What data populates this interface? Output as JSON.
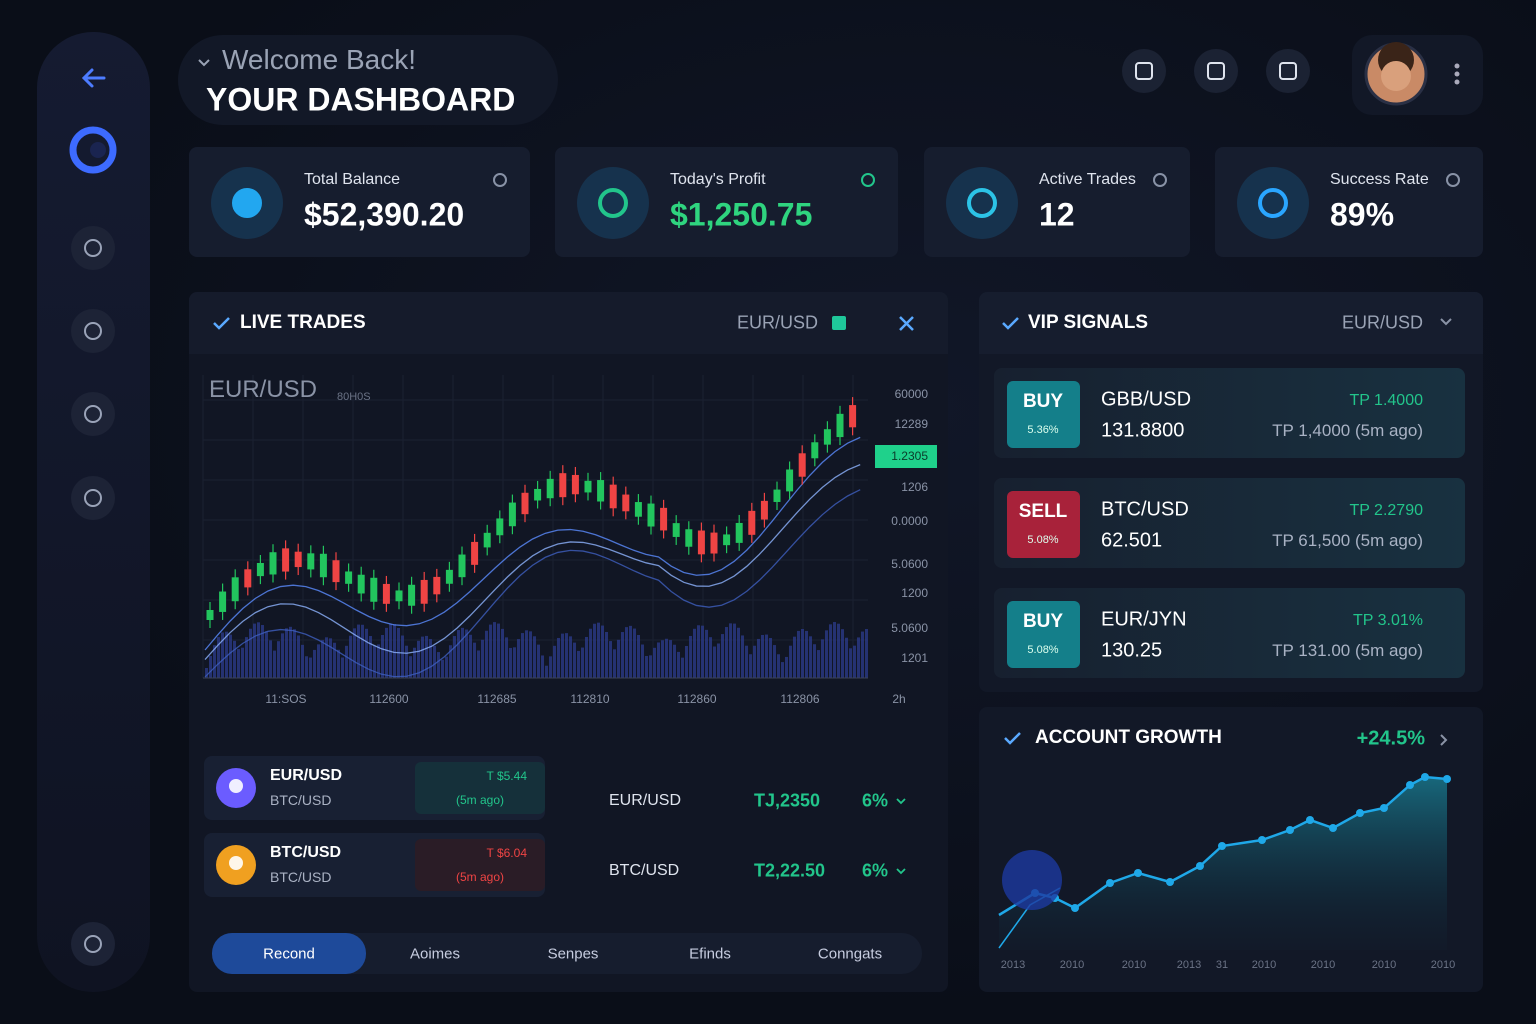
{
  "header": {
    "greeting": "Welcome Back!",
    "title": "YOUR DASHBOARD"
  },
  "stats": [
    {
      "label": "Total Balance",
      "value": "$52,390.20"
    },
    {
      "label": "Today's Profit",
      "value": "$1,250.75"
    },
    {
      "label": "Active Trades",
      "value": "12"
    },
    {
      "label": "Success Rate",
      "value": "89%"
    }
  ],
  "live_trades": {
    "title": "LIVE TRADES",
    "pair": "EUR/USD",
    "chart_label": "EUR/USD",
    "chart_sublabel": "80H0S",
    "price_labels": [
      "60000",
      "12289",
      "1.2305",
      "1206",
      "0.0000",
      "5.0600",
      "1200",
      "5.0600",
      "1201"
    ],
    "time_labels": [
      "11:SOS",
      "112600",
      "112685",
      "112810",
      "112860",
      "112806",
      "2h"
    ],
    "positions": [
      {
        "pair": "EUR/USD",
        "sub": "BTC/USD",
        "tp": "T $5.44",
        "time": "(5m ago)"
      },
      {
        "pair": "BTC/USD",
        "sub": "BTC/USD",
        "tp": "T $6.04",
        "time": "(5m ago)"
      }
    ],
    "rows": [
      {
        "pair": "EUR/USD",
        "tp": "TJ,2350",
        "pct": "6%"
      },
      {
        "pair": "BTC/USD",
        "tp": "T2,22.50",
        "pct": "6%"
      }
    ],
    "tabs": [
      "Recond",
      "Aoimes",
      "Senpes",
      "Efinds",
      "Conngats"
    ]
  },
  "vip": {
    "title": "VIP SIGNALS",
    "pair": "EUR/USD",
    "signals": [
      {
        "action": "BUY",
        "badge": "5.36%",
        "pair": "GBB/USD",
        "price": "131.8800",
        "tp": "TP 1.4000",
        "detail": "TP 1,4000 (5m ago)"
      },
      {
        "action": "SELL",
        "badge": "5.08%",
        "pair": "BTC/USD",
        "price": "62.501",
        "tp": "TP 2.2790",
        "detail": "TP 61,500 (5m ago)"
      },
      {
        "action": "BUY",
        "badge": "5.08%",
        "pair": "EUR/JYN",
        "price": "130.25",
        "tp": "TP 3.01%",
        "detail": "TP 131.00 (5m ago)"
      }
    ]
  },
  "growth": {
    "title": "ACCOUNT GROWTH",
    "change": "+24.5%",
    "x_labels": [
      "2013",
      "2010",
      "2010",
      "2013",
      "31",
      "2010",
      "2010",
      "2010",
      "2010"
    ]
  }
}
